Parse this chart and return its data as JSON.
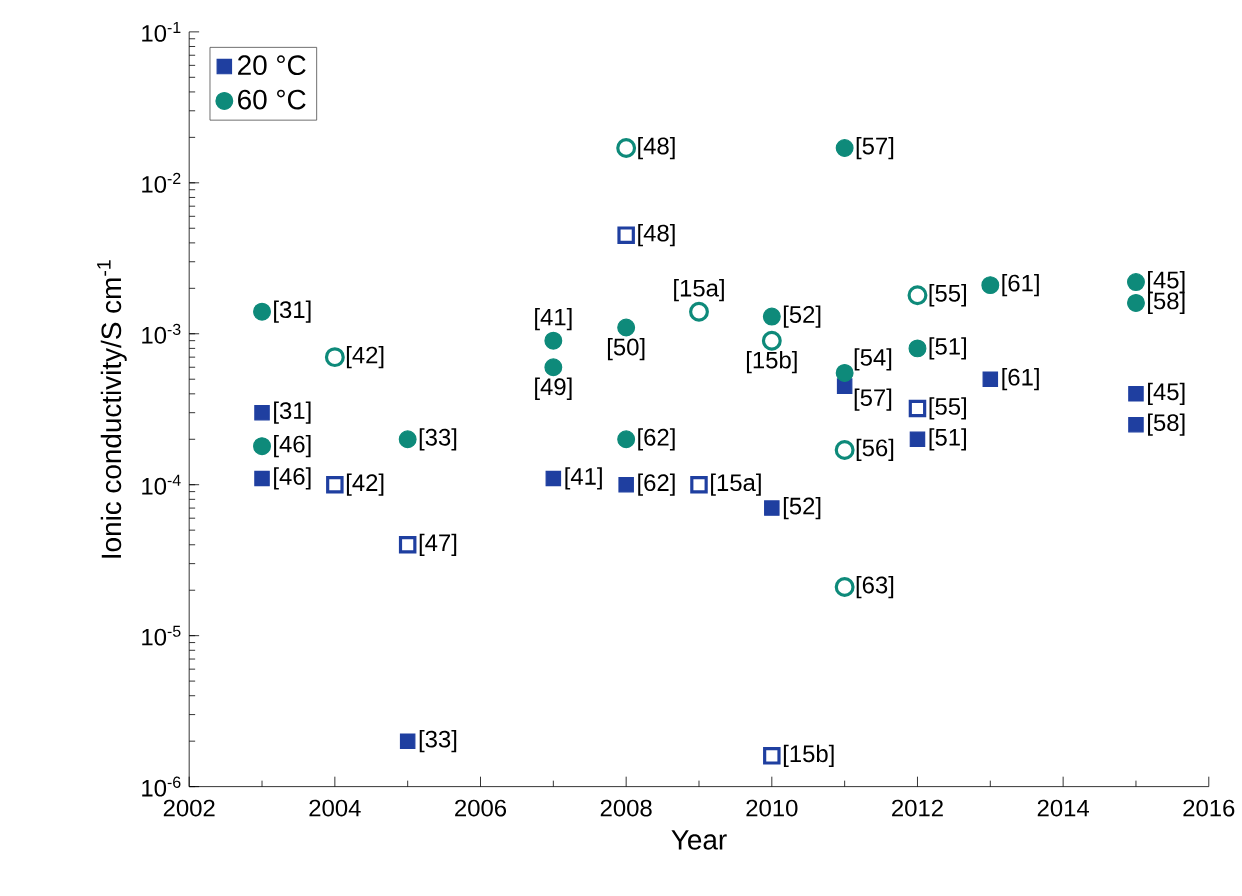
{
  "chart_data": {
    "type": "scatter",
    "xlabel": "Year",
    "ylabel": "Ionic conductivity/S cm$^{-1}$",
    "xlim": [
      2002,
      2016
    ],
    "xticks": [
      2002,
      2004,
      2006,
      2008,
      2010,
      2012,
      2014,
      2016
    ],
    "ylim": [
      1e-06,
      0.1
    ],
    "log": "y",
    "yticks": [
      {
        "value": 1e-06,
        "label": "10$^{-6}$"
      },
      {
        "value": 1e-05,
        "label": "10$^{-5}$"
      },
      {
        "value": 0.0001,
        "label": "10$^{-4}$"
      },
      {
        "value": 0.001,
        "label": "10$^{-3}$"
      },
      {
        "value": 0.01,
        "label": "10$^{-2}$"
      },
      {
        "value": 0.1,
        "label": "10$^{-1}$"
      }
    ],
    "legend": "top left",
    "grid": false,
    "series": [
      {
        "name": "20 °C",
        "color": "#1f3fa0",
        "marker": "square",
        "x": [
          2003,
          2003,
          2005,
          2007,
          2008,
          2010,
          2011,
          2012,
          2013,
          2015,
          2015
        ],
        "values": [
          0.0003,
          0.00011,
          2e-06,
          0.00011,
          0.0001,
          7e-05,
          0.00045,
          0.0002,
          0.0005,
          0.0004,
          0.00025
        ]
      },
      {
        "color": "#1f3fa0",
        "marker": "square open",
        "x": [
          2004,
          2005,
          2008,
          2009,
          2010,
          2012
        ],
        "values": [
          0.0001,
          4e-05,
          0.0045,
          0.0001,
          1.6e-06,
          0.00032
        ]
      },
      {
        "name": "60 °C",
        "color": "#0e8a7a",
        "marker": "circle",
        "x": [
          2003,
          2003,
          2005,
          2007,
          2007,
          2008,
          2008,
          2010,
          2011,
          2011,
          2012,
          2013,
          2015,
          2015
        ],
        "values": [
          0.0014,
          0.00018,
          0.0002,
          0.0009,
          0.0006,
          0.0011,
          0.0002,
          0.0013,
          0.017,
          0.00055,
          0.0008,
          0.0021,
          0.0022,
          0.0016
        ]
      },
      {
        "color": "#0e8a7a",
        "marker": "circle open",
        "x": [
          2004,
          2008,
          2009,
          2010,
          2011,
          2011,
          2012
        ],
        "values": [
          0.0007,
          0.017,
          0.0014,
          0.0009,
          0.00017,
          2.1e-05,
          0.0018
        ]
      }
    ],
    "annotations": [
      {
        "text": "[31]",
        "x": 2003,
        "y": 0.0003
      },
      {
        "text": "[46]",
        "x": 2003,
        "y": 0.00011
      },
      {
        "text": "[33]",
        "x": 2005,
        "y": 2e-06
      },
      {
        "text": "[41]",
        "x": 2007,
        "y": 0.00011
      },
      {
        "text": "[62]",
        "x": 2008,
        "y": 0.0001
      },
      {
        "text": "[52]",
        "x": 2010,
        "y": 7e-05
      },
      {
        "text": "[57]",
        "x": 2011,
        "y": 0.00045
      },
      {
        "text": "[51]",
        "x": 2012,
        "y": 0.0002
      },
      {
        "text": "[61]",
        "x": 2013,
        "y": 0.0005
      },
      {
        "text": "[45]",
        "x": 2015,
        "y": 0.0004
      },
      {
        "text": "[58]",
        "x": 2015,
        "y": 0.00025
      },
      {
        "text": "[42]",
        "x": 2004,
        "y": 0.0001
      },
      {
        "text": "[47]",
        "x": 2005,
        "y": 4e-05
      },
      {
        "text": "[48]",
        "x": 2008,
        "y": 0.0045
      },
      {
        "text": "[15a]",
        "x": 2009,
        "y": 0.0001
      },
      {
        "text": "[15b]",
        "x": 2010,
        "y": 1.6e-06
      },
      {
        "text": "[55]",
        "x": 2012,
        "y": 0.00032
      },
      {
        "text": "[31]",
        "x": 2003,
        "y": 0.0014
      },
      {
        "text": "[46]",
        "x": 2003,
        "y": 0.00018
      },
      {
        "text": "[33]",
        "x": 2005,
        "y": 0.0002
      },
      {
        "text": "[41]",
        "x": 2007,
        "y": 0.0009
      },
      {
        "text": "[49]",
        "x": 2007,
        "y": 0.0006
      },
      {
        "text": "[50]",
        "x": 2008,
        "y": 0.0011
      },
      {
        "text": "[62]",
        "x": 2008,
        "y": 0.0002
      },
      {
        "text": "[52]",
        "x": 2010,
        "y": 0.0013
      },
      {
        "text": "[57]",
        "x": 2011,
        "y": 0.017
      },
      {
        "text": "[54]",
        "x": 2011,
        "y": 0.00055
      },
      {
        "text": "[51]",
        "x": 2012,
        "y": 0.0008
      },
      {
        "text": "[61]",
        "x": 2013,
        "y": 0.0021
      },
      {
        "text": "[45]",
        "x": 2015,
        "y": 0.0022
      },
      {
        "text": "[58]",
        "x": 2015,
        "y": 0.0016
      },
      {
        "text": "[42]",
        "x": 2004,
        "y": 0.0007
      },
      {
        "text": "[48]",
        "x": 2008,
        "y": 0.017
      },
      {
        "text": "[15a]",
        "x": 2009,
        "y": 0.0014
      },
      {
        "text": "[15b]",
        "x": 2010,
        "y": 0.0009
      },
      {
        "text": "[56]",
        "x": 2011,
        "y": 0.00017
      },
      {
        "text": "[63]",
        "x": 2011,
        "y": 2.1e-05
      },
      {
        "text": "[55]",
        "x": 2012,
        "y": 0.0018
      }
    ]
  }
}
